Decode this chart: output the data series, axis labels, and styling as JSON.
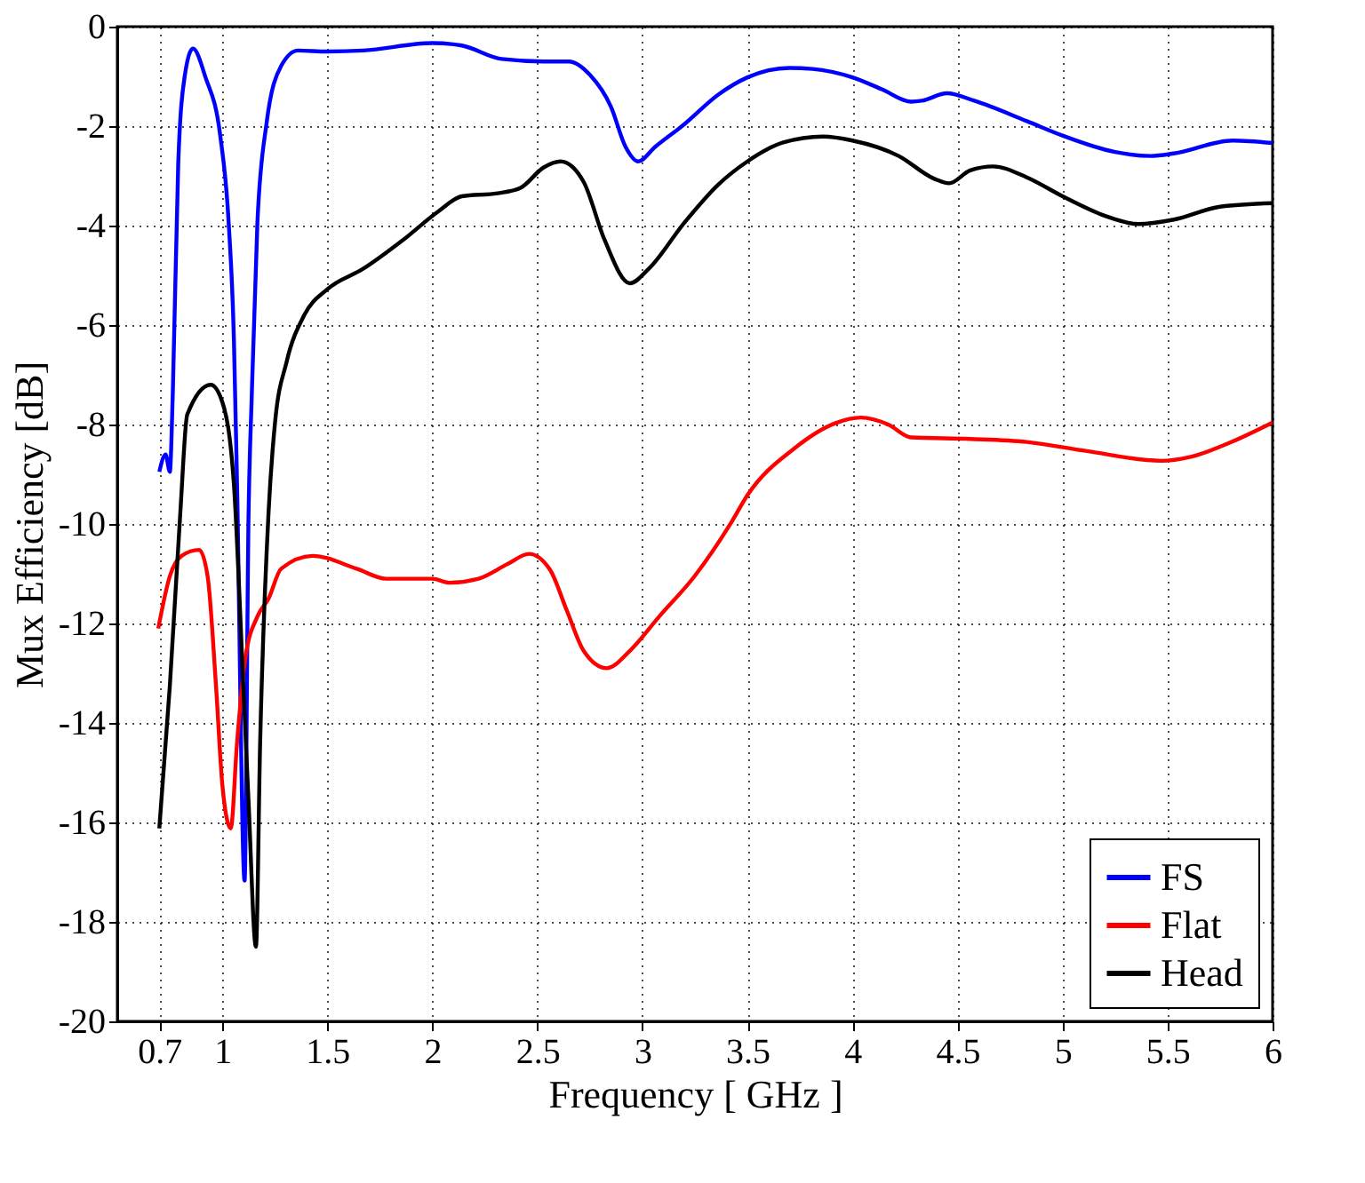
{
  "chart_data": {
    "type": "line",
    "xlabel": "Frequency [ GHz ]",
    "ylabel": "Mux Efficiency [dB]",
    "xlim": [
      0.5,
      6
    ],
    "xticks": [
      0.7,
      1,
      1.5,
      2,
      2.5,
      3,
      3.5,
      4,
      4.5,
      5,
      5.5,
      6
    ],
    "ylim": [
      -20,
      0
    ],
    "yticks": [
      -20,
      -18,
      -16,
      -14,
      -12,
      -10,
      -8,
      -6,
      -4,
      -2,
      0
    ],
    "grid": true,
    "legend": "bottom right",
    "marker": "none",
    "line_style": "solid",
    "series": [
      {
        "name": "FS",
        "color": "#0000ff",
        "x": [
          0.7,
          0.73,
          0.75,
          0.764,
          0.79,
          0.82,
          0.86,
          0.92,
          0.99,
          1.03,
          1.055,
          1.07,
          1.106,
          1.125,
          1.14,
          1.167,
          1.21,
          1.28,
          1.36,
          1.5,
          1.67,
          2.0,
          2.14,
          2.33,
          2.53,
          2.65,
          2.75,
          2.85,
          2.92,
          2.98,
          3.06,
          3.2,
          3.36,
          3.5,
          3.7,
          3.81,
          4.0,
          4.14,
          4.28,
          4.33,
          4.45,
          4.58,
          4.83,
          5.0,
          5.25,
          5.42,
          5.53,
          5.81,
          6.0
        ],
        "values": [
          -8.95,
          -8.6,
          -8.95,
          -7.4,
          -2.77,
          -1.02,
          -0.44,
          -1.02,
          -2.19,
          -3.93,
          -6.27,
          -9.2,
          -17.17,
          -9.77,
          -7.43,
          -3.94,
          -1.96,
          -0.79,
          -0.48,
          -0.5,
          -0.48,
          -0.33,
          -0.38,
          -0.65,
          -0.7,
          -0.7,
          -0.97,
          -1.61,
          -2.42,
          -2.71,
          -2.42,
          -1.96,
          -1.37,
          -1.02,
          -0.83,
          -0.85,
          -1.02,
          -1.26,
          -1.51,
          -1.49,
          -1.34,
          -1.49,
          -1.9,
          -2.19,
          -2.52,
          -2.6,
          -2.55,
          -2.29,
          -2.34
        ]
      },
      {
        "name": "Flat",
        "color": "#ff0000",
        "x": [
          0.695,
          0.75,
          0.806,
          0.89,
          0.93,
          0.97,
          1.0,
          1.04,
          1.07,
          1.11,
          1.167,
          1.22,
          1.28,
          1.43,
          1.64,
          1.78,
          2.0,
          2.08,
          2.22,
          2.36,
          2.46,
          2.56,
          2.64,
          2.72,
          2.83,
          2.94,
          3.08,
          3.25,
          3.42,
          3.5,
          3.72,
          3.92,
          4.04,
          4.17,
          4.28,
          4.56,
          4.83,
          5.11,
          5.47,
          5.61,
          5.81,
          6.0
        ],
        "values": [
          -12.1,
          -11.05,
          -10.64,
          -10.52,
          -11.05,
          -13.26,
          -15.24,
          -16.12,
          -14.4,
          -12.68,
          -11.86,
          -11.5,
          -10.9,
          -10.64,
          -10.9,
          -11.1,
          -11.1,
          -11.18,
          -11.1,
          -10.8,
          -10.6,
          -10.92,
          -11.74,
          -12.55,
          -12.9,
          -12.55,
          -11.86,
          -11.04,
          -9.99,
          -9.42,
          -8.49,
          -7.97,
          -7.86,
          -8.0,
          -8.26,
          -8.29,
          -8.35,
          -8.53,
          -8.73,
          -8.65,
          -8.34,
          -7.96
        ]
      },
      {
        "name": "Head",
        "color": "#000000",
        "x": [
          0.7,
          0.75,
          0.8,
          0.833,
          0.945,
          1.0,
          1.055,
          1.1,
          1.125,
          1.16,
          1.18,
          1.22,
          1.25,
          1.306,
          1.39,
          1.5,
          1.67,
          1.86,
          2.03,
          2.14,
          2.31,
          2.42,
          2.53,
          2.61,
          2.72,
          2.82,
          2.94,
          3.03,
          3.2,
          3.36,
          3.5,
          3.67,
          3.86,
          4.0,
          4.22,
          4.39,
          4.46,
          4.56,
          4.67,
          4.83,
          5.0,
          5.2,
          5.36,
          5.53,
          5.75,
          6.0
        ],
        "values": [
          -16.12,
          -13.26,
          -9.77,
          -7.8,
          -7.2,
          -7.55,
          -9.2,
          -13.26,
          -15.6,
          -18.5,
          -14.4,
          -9.77,
          -8.0,
          -6.74,
          -5.8,
          -5.28,
          -4.87,
          -4.29,
          -3.71,
          -3.41,
          -3.35,
          -3.24,
          -2.83,
          -2.71,
          -3.12,
          -4.29,
          -5.16,
          -4.87,
          -3.94,
          -3.18,
          -2.71,
          -2.33,
          -2.21,
          -2.29,
          -2.6,
          -3.06,
          -3.15,
          -2.89,
          -2.81,
          -3.03,
          -3.41,
          -3.8,
          -3.97,
          -3.88,
          -3.62,
          -3.55
        ]
      }
    ]
  }
}
